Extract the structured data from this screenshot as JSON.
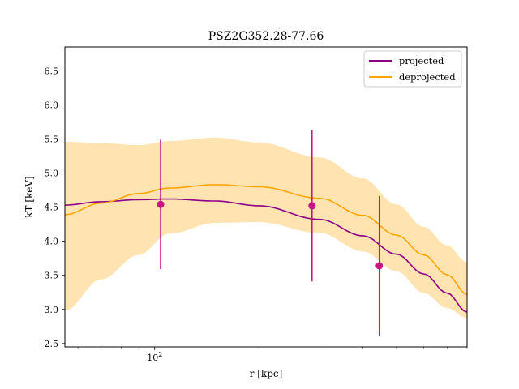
{
  "chart_data": {
    "type": "line",
    "title": "PSZ2G352.28-77.66",
    "xlabel": "r [kpc]",
    "ylabel": "kT [keV]",
    "x_scale": "log",
    "xlim": [
      55,
      800
    ],
    "ylim": [
      2.45,
      6.85
    ],
    "x_major_ticks": [
      {
        "value": 100,
        "label": "10^2"
      }
    ],
    "x_minor_ticks": [
      60,
      70,
      80,
      90,
      200,
      300,
      400,
      500,
      600,
      700,
      800
    ],
    "y_ticks": [
      2.5,
      3.0,
      3.5,
      4.0,
      4.5,
      5.0,
      5.5,
      6.0,
      6.5
    ],
    "legend_position": "top-right",
    "series": [
      {
        "name": "projected",
        "color": "#8b008b",
        "x": [
          55,
          70,
          90,
          110,
          150,
          200,
          300,
          400,
          500,
          600,
          700,
          800
        ],
        "y": [
          4.53,
          4.58,
          4.61,
          4.62,
          4.59,
          4.52,
          4.32,
          4.08,
          3.81,
          3.52,
          3.24,
          2.96
        ]
      },
      {
        "name": "deprojected",
        "color": "#ffa500",
        "x": [
          55,
          70,
          90,
          110,
          150,
          200,
          300,
          400,
          500,
          600,
          700,
          800
        ],
        "y": [
          4.39,
          4.56,
          4.7,
          4.78,
          4.83,
          4.8,
          4.63,
          4.38,
          4.09,
          3.8,
          3.51,
          3.22
        ]
      }
    ],
    "band": {
      "color": "#ffa500",
      "x": [
        55,
        70,
        90,
        110,
        150,
        200,
        300,
        400,
        500,
        600,
        700,
        800
      ],
      "upper": [
        5.46,
        5.44,
        5.41,
        5.47,
        5.52,
        5.45,
        5.23,
        4.92,
        4.54,
        4.21,
        3.94,
        3.69
      ],
      "lower": [
        2.98,
        3.44,
        3.8,
        4.11,
        4.27,
        4.28,
        4.12,
        3.85,
        3.56,
        3.24,
        3.02,
        2.87
      ]
    },
    "data_points": {
      "color": "#c71585",
      "x": [
        104,
        285,
        446
      ],
      "y": [
        4.54,
        4.52,
        3.64
      ],
      "y_low": [
        3.59,
        3.41,
        2.61
      ],
      "y_high": [
        5.49,
        5.63,
        4.66
      ]
    }
  }
}
